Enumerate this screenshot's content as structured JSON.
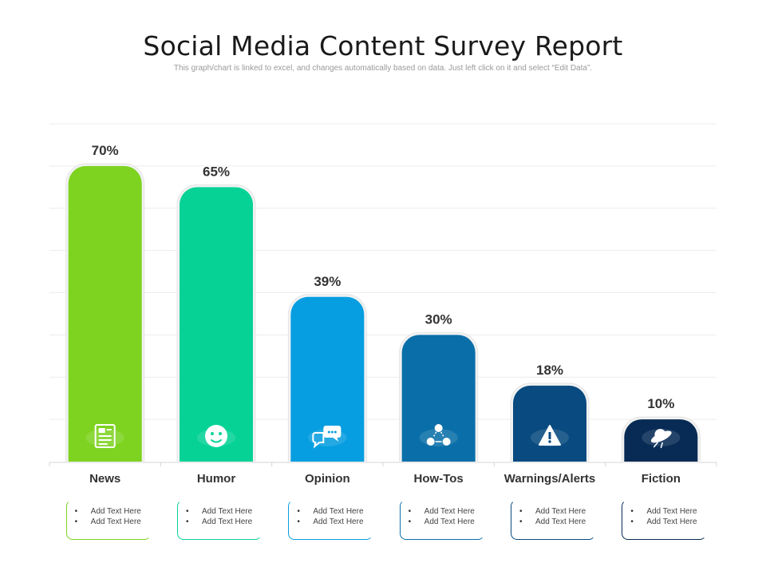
{
  "header": {
    "title": "Social Media Content Survey Report",
    "subtitle": "This graph/chart is linked to excel, and changes automatically based on data. Just left click on it and select “Edit Data”."
  },
  "chart_data": {
    "type": "bar",
    "title": "Social Media Content Survey Report",
    "categories": [
      "News",
      "Humor",
      "Opinion",
      "How-Tos",
      "Warnings/Alerts",
      "Fiction"
    ],
    "values": [
      70,
      65,
      39,
      30,
      18,
      10
    ],
    "value_labels": [
      "70%",
      "65%",
      "39%",
      "30%",
      "18%",
      "10%"
    ],
    "unit": "%",
    "ylim": [
      0,
      80
    ],
    "grid": true,
    "xlabel": "",
    "ylabel": "",
    "colors": [
      "#7ed321",
      "#06d296",
      "#069ee0",
      "#0a6fa8",
      "#094b80",
      "#072b55"
    ],
    "icons": [
      "newspaper-icon",
      "smiley-face-icon",
      "chat-bubbles-icon",
      "steps-process-icon",
      "warning-triangle-icon",
      "ufo-icon"
    ]
  },
  "textboxes": [
    {
      "bullets": [
        "Add Text Here",
        "Add Text Here"
      ]
    },
    {
      "bullets": [
        "Add Text Here",
        "Add Text Here"
      ]
    },
    {
      "bullets": [
        "Add Text Here",
        "Add Text Here"
      ]
    },
    {
      "bullets": [
        "Add Text Here",
        "Add Text Here"
      ]
    },
    {
      "bullets": [
        "Add Text Here",
        "Add Text Here"
      ]
    },
    {
      "bullets": [
        "Add Text Here",
        "Add Text Here"
      ]
    }
  ]
}
